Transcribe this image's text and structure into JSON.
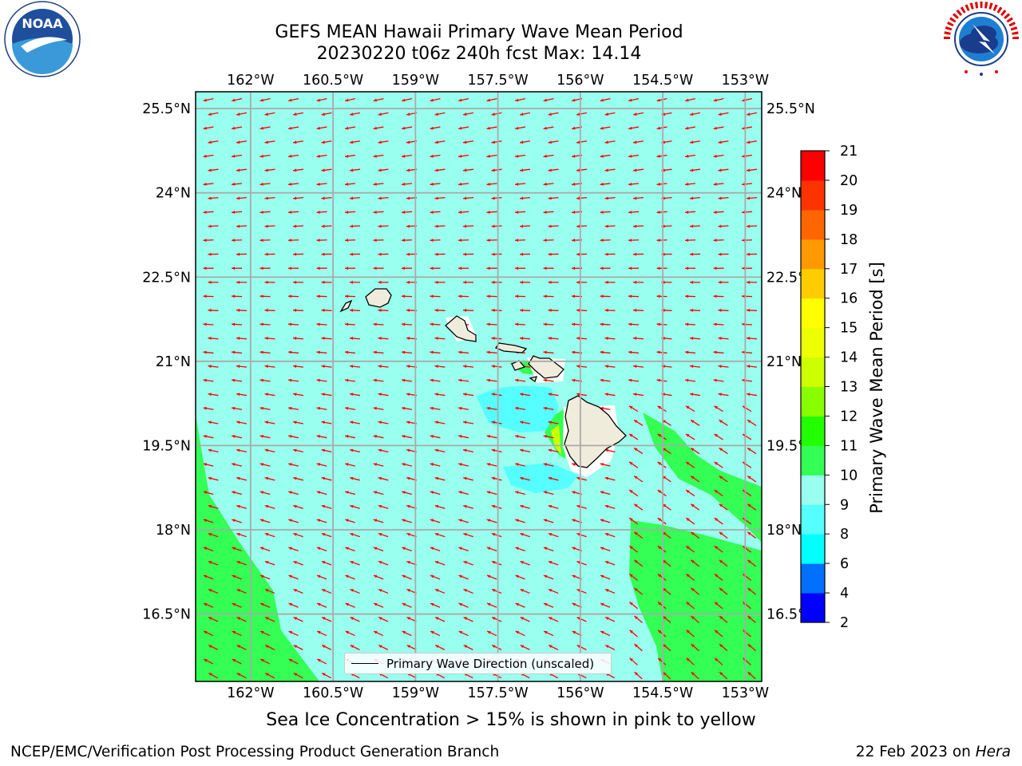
{
  "header": {
    "title_line1": "GEFS MEAN Hawaii Primary Wave Mean Period",
    "title_line2": "20230220 t06z 240h fcst   Max: 14.14"
  },
  "logos": {
    "left": {
      "name": "noaa-logo",
      "text": "NOAA",
      "ring_text": "NATIONAL OCEANIC AND ATMOSPHERIC ADMINISTRATION · U.S. DEPARTMENT OF COMMERCE"
    },
    "right": {
      "name": "nws-logo",
      "ring_text": "NATIONAL WEATHER SERVICE"
    }
  },
  "map": {
    "lon_labels": [
      "162°W",
      "160.5°W",
      "159°W",
      "157.5°W",
      "156°W",
      "154.5°W",
      "153°W"
    ],
    "lat_labels": [
      "25.5°N",
      "24°N",
      "22.5°N",
      "21°N",
      "19.5°N",
      "18°N",
      "16.5°N"
    ],
    "lon_range": [
      -163.0,
      -152.7
    ],
    "lat_range": [
      15.3,
      25.8
    ],
    "ocean_color": "#99ffee",
    "land_color": "#f0ecdc",
    "arrow_color": "#ff0000",
    "legend_label": "Primary Wave Direction (unscaled)"
  },
  "colorbar": {
    "title": "Primary Wave Mean Period [s]",
    "ticks": [
      "2",
      "4",
      "6",
      "8",
      "9",
      "10",
      "11",
      "12",
      "13",
      "14",
      "15",
      "16",
      "17",
      "18",
      "19",
      "20",
      "21"
    ],
    "colors": [
      "#0000ff",
      "#0070ff",
      "#00ffff",
      "#55ffff",
      "#99ffee",
      "#33ff55",
      "#22ff00",
      "#88ff00",
      "#ccff00",
      "#eeff00",
      "#ffff00",
      "#ffcc00",
      "#ff9900",
      "#ff6600",
      "#ff3300",
      "#ff0000"
    ]
  },
  "chart_data": {
    "type": "heatmap",
    "title": "GEFS MEAN Hawaii Primary Wave Mean Period",
    "subtitle": "20230220 t06z 240h fcst   Max: 14.14",
    "variable": "Primary Wave Mean Period",
    "units": "s",
    "max_value": 14.14,
    "colorbar_ticks": [
      2,
      4,
      6,
      8,
      9,
      10,
      11,
      12,
      13,
      14,
      15,
      16,
      17,
      18,
      19,
      20,
      21
    ],
    "xlim": [
      -163.0,
      -152.7
    ],
    "ylim": [
      15.3,
      25.8
    ],
    "predominant_range_s": [
      9,
      10
    ],
    "vector_field": "Primary Wave Direction (unscaled)",
    "predominant_direction": "toward west-southwest"
  },
  "captions": {
    "sea_ice": "Sea Ice Concentration > 15% is shown in pink to yellow",
    "footer_left": "NCEP/EMC/Verification Post Processing Product Generation Branch",
    "footer_date": "22 Feb 2023 on ",
    "footer_machine": "Hera"
  }
}
